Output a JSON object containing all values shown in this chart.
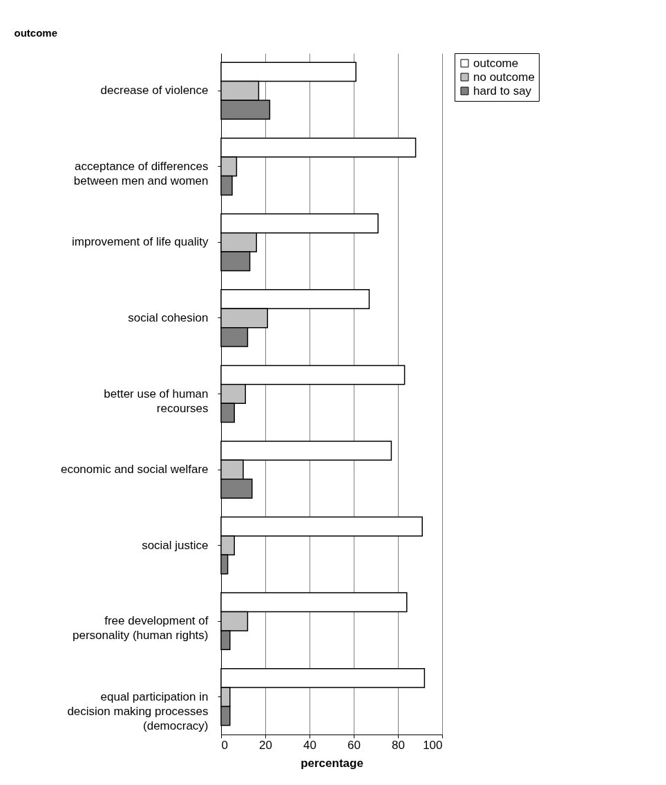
{
  "chart_data": {
    "type": "bar",
    "orientation": "horizontal",
    "ylabel": "outcome",
    "xlabel": "percentage",
    "categories": [
      "decrease of violence",
      "acceptance of differences\nbetween men and women",
      "improvement of life quality",
      "social cohesion",
      "better use of human\nrecourses",
      "economic and social welfare",
      "social justice",
      "free development of\npersonality (human rights)",
      "equal participation in\ndecision making processes\n(democracy)"
    ],
    "series": [
      {
        "name": "outcome",
        "color": "#ffffff",
        "values": [
          61,
          88,
          71,
          67,
          83,
          77,
          91,
          84,
          92
        ]
      },
      {
        "name": "no outcome",
        "color": "#c0c0c0",
        "values": [
          17,
          7,
          16,
          21,
          11,
          10,
          6,
          12,
          4
        ]
      },
      {
        "name": "hard to say",
        "color": "#808080",
        "values": [
          22,
          5,
          13,
          12,
          6,
          14,
          3,
          4,
          4
        ]
      }
    ],
    "xlim": [
      0,
      100
    ],
    "xticks": [
      0,
      20,
      40,
      60,
      80,
      100
    ],
    "grid": "x",
    "legend": "right"
  }
}
